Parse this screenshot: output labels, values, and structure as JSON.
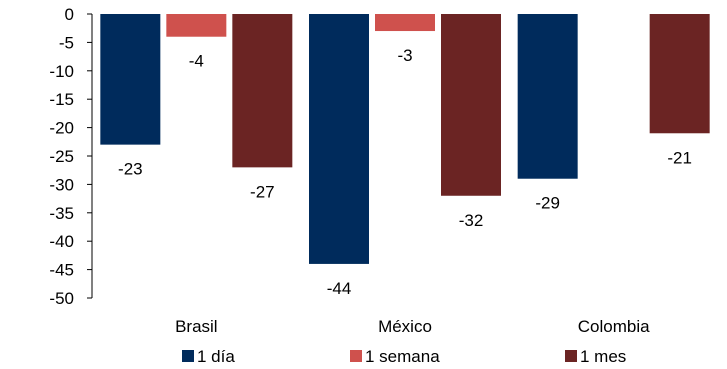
{
  "chart_data": {
    "type": "bar",
    "categories": [
      "Brasil",
      "México",
      "Colombia"
    ],
    "series": [
      {
        "name": "1 día",
        "values": [
          -23,
          -44,
          -29
        ],
        "color": "#002B5C",
        "labels": [
          "-23",
          "-44",
          "-29"
        ]
      },
      {
        "name": "1 semana",
        "values": [
          -4,
          -3,
          null
        ],
        "color": "#CF514D",
        "labels": [
          "-4",
          "-3",
          ""
        ]
      },
      {
        "name": "1 mes",
        "values": [
          -27,
          -32,
          -21
        ],
        "color": "#6B2423",
        "labels": [
          "-27",
          "-32",
          "-21"
        ]
      }
    ],
    "ylim": [
      -50,
      0
    ],
    "yticks": [
      0,
      -5,
      -10,
      -15,
      -20,
      -25,
      -30,
      -35,
      -40,
      -45,
      -50
    ],
    "ytick_labels": [
      "0",
      "-5",
      "-10",
      "-15",
      "-20",
      "-25",
      "-30",
      "-35",
      "-40",
      "-45",
      "-50"
    ],
    "grid": false,
    "legend": "bottom"
  }
}
